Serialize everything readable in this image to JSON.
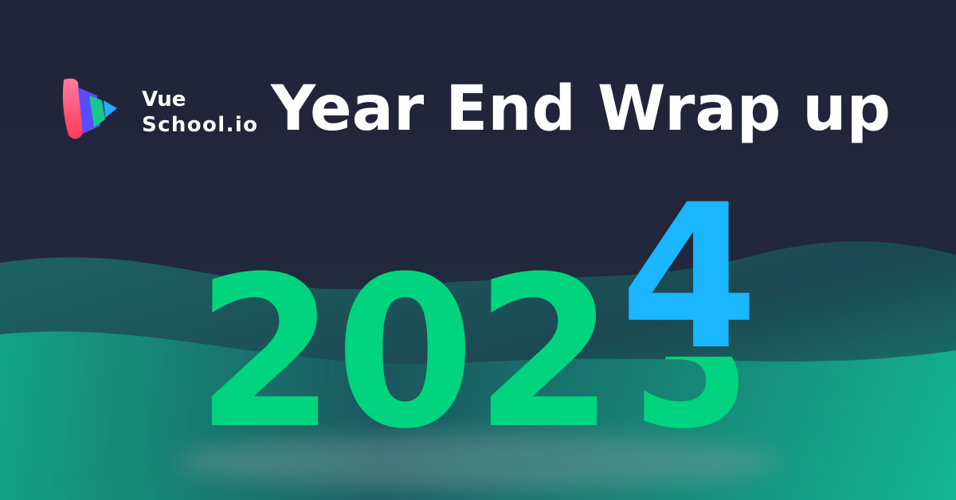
{
  "logo": {
    "line1": "Vue",
    "line2": "School.io"
  },
  "title": "Year End Wrap up",
  "year": {
    "base": "202",
    "new_digit": "4",
    "old_digit": "3"
  }
}
